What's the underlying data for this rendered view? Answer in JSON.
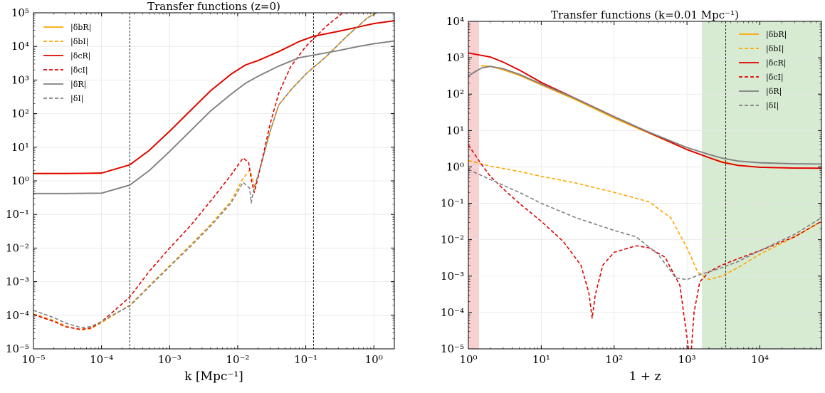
{
  "chart_data": [
    {
      "type": "line",
      "title": "Transfer functions (z=0)",
      "xlabel": "k [Mpc⁻¹]",
      "xscale": "log",
      "yscale": "log",
      "xlim": [
        1e-05,
        2
      ],
      "ylim": [
        1e-05,
        100000.0
      ],
      "xticks": [
        1e-05,
        0.0001,
        0.001,
        0.01,
        0.1,
        1.0
      ],
      "xtick_labels": [
        "10⁻⁵",
        "10⁻⁴",
        "10⁻³",
        "10⁻²",
        "10⁻¹",
        "10⁰"
      ],
      "yticks": [
        1e-05,
        0.0001,
        0.001,
        0.01,
        0.1,
        1.0,
        10.0,
        100.0,
        1000.0,
        10000.0,
        100000.0
      ],
      "ytick_labels": [
        "10⁻⁵",
        "10⁻⁴",
        "10⁻³",
        "10⁻²",
        "10⁻¹",
        "10⁰",
        "10¹",
        "10²",
        "10³",
        "10⁴",
        "10⁵"
      ],
      "grid": true,
      "legend": "top-left",
      "vlines": [
        0.00026,
        0.13
      ],
      "series": [
        {
          "name": "|δbR|",
          "color": "#FFA500",
          "dash": "solid",
          "x": [
            1e-05,
            3e-05,
            0.0001,
            0.00026,
            0.0005,
            0.001,
            0.002,
            0.004,
            0.008,
            0.013,
            0.02,
            0.04,
            0.08,
            0.13,
            0.3,
            0.6,
            1.0,
            2.0
          ],
          "y": [
            1.65,
            1.65,
            1.7,
            3.0,
            8,
            30,
            120,
            480,
            1500,
            2800,
            3800,
            7000,
            14000,
            20000,
            28000,
            38000,
            48000,
            58000
          ]
        },
        {
          "name": "|δbI|",
          "color": "#FFA500",
          "dash": "dashed",
          "x": [
            1e-05,
            2e-05,
            3e-05,
            5e-05,
            7e-05,
            0.0001,
            0.00015,
            0.00026,
            0.0005,
            0.001,
            0.002,
            0.004,
            0.008,
            0.012,
            0.015,
            0.0165,
            0.018,
            0.022,
            0.03,
            0.04,
            0.06,
            0.1,
            0.2,
            0.4,
            0.8,
            1.3
          ],
          "y": [
            0.00011,
            7e-05,
            4.8e-05,
            3.6e-05,
            4e-05,
            6e-05,
            0.0001,
            0.0002,
            0.00075,
            0.003,
            0.012,
            0.05,
            0.25,
            1.2,
            2.1,
            1.2,
            0.55,
            3,
            30,
            180,
            500,
            1500,
            5000,
            20000,
            70000,
            120000
          ]
        },
        {
          "name": "|δcR|",
          "color": "#E00000",
          "dash": "solid",
          "x": [
            1e-05,
            3e-05,
            0.0001,
            0.00026,
            0.0005,
            0.001,
            0.002,
            0.004,
            0.008,
            0.013,
            0.02,
            0.04,
            0.08,
            0.13,
            0.3,
            0.6,
            1.0,
            2.0
          ],
          "y": [
            1.65,
            1.65,
            1.7,
            3.0,
            8,
            30,
            120,
            480,
            1500,
            2800,
            3800,
            7000,
            14000,
            20000,
            28000,
            38000,
            48000,
            58000
          ]
        },
        {
          "name": "|δcI|",
          "color": "#E00000",
          "dash": "dashed",
          "x": [
            1e-05,
            2e-05,
            3e-05,
            5e-05,
            7e-05,
            0.0001,
            0.00015,
            0.00026,
            0.0005,
            0.001,
            0.002,
            0.004,
            0.008,
            0.012,
            0.0145,
            0.016,
            0.0175,
            0.022,
            0.03,
            0.04,
            0.06,
            0.1,
            0.2,
            0.35,
            0.6,
            0.9
          ],
          "y": [
            0.000105,
            6.5e-05,
            4.5e-05,
            3.8e-05,
            4.2e-05,
            6.5e-05,
            0.00013,
            0.00035,
            0.002,
            0.01,
            0.045,
            0.25,
            1.5,
            4.8,
            3.5,
            1.0,
            0.45,
            3,
            50,
            400,
            2500,
            10000,
            40000,
            100000,
            100000,
            100000
          ]
        },
        {
          "name": "|δR|",
          "color": "#808080",
          "dash": "solid",
          "x": [
            1e-05,
            3e-05,
            0.0001,
            0.00026,
            0.0005,
            0.001,
            0.002,
            0.004,
            0.008,
            0.013,
            0.02,
            0.04,
            0.08,
            0.13,
            0.3,
            0.6,
            1.0,
            2.0
          ],
          "y": [
            0.42,
            0.42,
            0.43,
            0.75,
            2.0,
            7.5,
            30,
            120,
            380,
            800,
            1300,
            2600,
            4600,
            5500,
            7500,
            10000,
            12000,
            14500
          ]
        },
        {
          "name": "|δI|",
          "color": "#808080",
          "dash": "dashed",
          "x": [
            1e-05,
            2e-05,
            3e-05,
            5e-05,
            7e-05,
            0.0001,
            0.00015,
            0.00026,
            0.0005,
            0.001,
            0.002,
            0.004,
            0.008,
            0.012,
            0.015,
            0.0158,
            0.017,
            0.022,
            0.03,
            0.04,
            0.06,
            0.1,
            0.2,
            0.4,
            0.8,
            1.3
          ],
          "y": [
            0.00014,
            8.5e-05,
            5.8e-05,
            4.3e-05,
            4.6e-05,
            6.5e-05,
            0.000105,
            0.00019,
            0.0007,
            0.0028,
            0.011,
            0.045,
            0.22,
            0.9,
            0.6,
            0.22,
            0.5,
            3,
            30,
            180,
            500,
            1500,
            5000,
            20000,
            70000,
            120000
          ]
        }
      ],
      "legend_entries": [
        {
          "label": "|δbR|",
          "color": "#FFA500",
          "dash": "solid"
        },
        {
          "label": "|δbI|",
          "color": "#FFA500",
          "dash": "dashed"
        },
        {
          "label": "|δcR|",
          "color": "#E00000",
          "dash": "solid"
        },
        {
          "label": "|δcI|",
          "color": "#E00000",
          "dash": "dashed"
        },
        {
          "label": "|δR|",
          "color": "#808080",
          "dash": "solid"
        },
        {
          "label": "|δI|",
          "color": "#808080",
          "dash": "dashed"
        }
      ]
    },
    {
      "type": "line",
      "title": "Transfer functions (k=0.01 Mpc⁻¹)",
      "xlabel": "1 + z",
      "xscale": "log",
      "yscale": "log",
      "xlim": [
        1,
        70000
      ],
      "ylim": [
        1e-05,
        10000.0
      ],
      "xticks": [
        1,
        10,
        100,
        1000,
        10000
      ],
      "xtick_labels": [
        "10⁰",
        "10¹",
        "10²",
        "10³",
        "10⁴"
      ],
      "yticks": [
        1e-05,
        0.0001,
        0.001,
        0.01,
        0.1,
        1.0,
        10.0,
        100.0,
        1000.0,
        10000.0
      ],
      "ytick_labels": [
        "10⁻⁵",
        "10⁻⁴",
        "10⁻³",
        "10⁻²",
        "10⁻¹",
        "10⁰",
        "10¹",
        "10²",
        "10³",
        "10⁴"
      ],
      "grid": true,
      "legend": "top-right",
      "vlines": [
        3400
      ],
      "shaded": [
        {
          "x0": 1,
          "x1": 1.4,
          "color": "#F8D0D0"
        },
        {
          "x0": 1600,
          "x1": 70000,
          "color": "#D7EBD3"
        }
      ],
      "series": [
        {
          "name": "|δbR|",
          "color": "#FFA500",
          "dash": "solid",
          "x": [
            1.5,
            2,
            3,
            5,
            10,
            30,
            100,
            300,
            1000,
            2000,
            3000,
            5000,
            10000,
            30000,
            70000
          ],
          "y": [
            600,
            580,
            470,
            330,
            180,
            70,
            22,
            8.5,
            3.0,
            1.8,
            1.4,
            1.1,
            0.98,
            0.93,
            0.92
          ]
        },
        {
          "name": "|δbI|",
          "color": "#FFA500",
          "dash": "dashed",
          "x": [
            1,
            2,
            5,
            10,
            30,
            100,
            300,
            600,
            1000,
            1400,
            2000,
            3000,
            5000,
            10000,
            30000,
            70000
          ],
          "y": [
            1.5,
            1.05,
            0.75,
            0.55,
            0.36,
            0.2,
            0.11,
            0.04,
            0.006,
            0.0013,
            0.0008,
            0.001,
            0.0017,
            0.004,
            0.012,
            0.032
          ]
        },
        {
          "name": "|δcR|",
          "color": "#E00000",
          "dash": "solid",
          "x": [
            1,
            2,
            3,
            5,
            10,
            30,
            100,
            300,
            1000,
            2000,
            3000,
            5000,
            10000,
            30000,
            70000
          ],
          "y": [
            1350,
            1050,
            760,
            460,
            210,
            75,
            24,
            8.8,
            3.0,
            1.8,
            1.35,
            1.1,
            0.98,
            0.93,
            0.92
          ]
        },
        {
          "name": "|δcI|",
          "color": "#E00000",
          "dash": "dashed",
          "x": [
            1,
            1.5,
            2,
            3,
            5,
            10,
            20,
            35,
            45,
            50,
            55,
            70,
            100,
            200,
            300,
            500,
            800,
            1050,
            1150,
            1250,
            1500,
            2000,
            3000,
            5000,
            10000,
            30000,
            70000
          ],
          "y": [
            4.0,
            1.2,
            0.55,
            0.25,
            0.1,
            0.032,
            0.009,
            0.002,
            0.00035,
            7e-05,
            0.0003,
            0.002,
            0.0045,
            0.0068,
            0.006,
            0.0033,
            0.00055,
            1e-05,
            1e-05,
            0.0001,
            0.0007,
            0.0013,
            0.002,
            0.003,
            0.005,
            0.012,
            0.032
          ]
        },
        {
          "name": "|δR|",
          "color": "#808080",
          "dash": "solid",
          "x": [
            1,
            1.5,
            2,
            3,
            5,
            10,
            30,
            100,
            300,
            1000,
            2000,
            3000,
            5000,
            10000,
            30000,
            70000
          ],
          "y": [
            320,
            520,
            580,
            500,
            350,
            190,
            75,
            24,
            9.0,
            3.4,
            2.2,
            1.75,
            1.45,
            1.3,
            1.22,
            1.2
          ]
        },
        {
          "name": "|δI|",
          "color": "#808080",
          "dash": "dashed",
          "x": [
            1,
            2,
            5,
            10,
            30,
            100,
            200,
            400,
            700,
            1000,
            1500,
            2000,
            3000,
            5000,
            10000,
            30000,
            70000
          ],
          "y": [
            0.85,
            0.45,
            0.2,
            0.1,
            0.04,
            0.018,
            0.012,
            0.004,
            0.0009,
            0.0008,
            0.0011,
            0.0013,
            0.0017,
            0.0025,
            0.005,
            0.014,
            0.04
          ]
        }
      ],
      "legend_entries": [
        {
          "label": "|δbR|",
          "color": "#FFA500",
          "dash": "solid"
        },
        {
          "label": "|δbI|",
          "color": "#FFA500",
          "dash": "dashed"
        },
        {
          "label": "|δcR|",
          "color": "#E00000",
          "dash": "solid"
        },
        {
          "label": "|δcI|",
          "color": "#E00000",
          "dash": "dashed"
        },
        {
          "label": "|δR|",
          "color": "#808080",
          "dash": "solid"
        },
        {
          "label": "|δI|",
          "color": "#808080",
          "dash": "dashed"
        }
      ]
    }
  ]
}
